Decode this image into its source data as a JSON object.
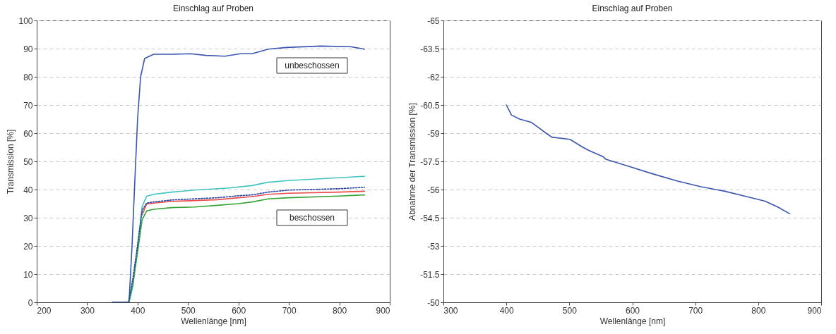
{
  "chart_data": [
    {
      "type": "line",
      "title": "Einschlag auf Proben",
      "xlabel": "Wellenlänge [nm]",
      "ylabel": "Transmission [%]",
      "xlim": [
        200,
        900
      ],
      "xticks": [
        200,
        300,
        400,
        500,
        600,
        700,
        800,
        900
      ],
      "ylim": [
        0,
        100
      ],
      "yticks": [
        0,
        10,
        20,
        30,
        40,
        50,
        60,
        70,
        80,
        90,
        100
      ],
      "grid": "y",
      "annotations": [
        "unbeschossen",
        "beschossen"
      ],
      "series": [
        {
          "color": "#3a56b0",
          "x": [
            350,
            383,
            389,
            395,
            400,
            406,
            414,
            432,
            468,
            505,
            536,
            573,
            604,
            627,
            659,
            695,
            763,
            822,
            850
          ],
          "values": [
            0,
            0,
            20,
            45,
            65,
            80,
            86.5,
            88,
            88,
            88.2,
            87.6,
            87.3,
            88.2,
            88.2,
            89.8,
            90.4,
            90.9,
            90.7,
            89.8
          ]
        },
        {
          "color": "#3ec3c3",
          "x": [
            383,
            391,
            400,
            409,
            418,
            432,
            468,
            513,
            577,
            627,
            659,
            699,
            799,
            850
          ],
          "values": [
            0,
            6,
            20,
            34,
            37.6,
            38.3,
            39.1,
            39.8,
            40.5,
            41.4,
            42.6,
            43.2,
            44.2,
            44.7
          ]
        },
        {
          "color": "#ea4b4b",
          "x": [
            409,
            418,
            432,
            468,
            513,
            559,
            600,
            627,
            659,
            699,
            799,
            850
          ],
          "values": [
            31,
            34.9,
            35.2,
            35.8,
            36.1,
            36.4,
            37.1,
            37.5,
            38.3,
            38.7,
            39.1,
            39.4
          ]
        },
        {
          "color": "#35a335",
          "x": [
            383,
            391,
            400,
            409,
            418,
            432,
            468,
            513,
            559,
            600,
            627,
            659,
            699,
            799,
            850
          ],
          "values": [
            0,
            7,
            17.8,
            29.3,
            32.4,
            33.0,
            33.6,
            33.8,
            34.4,
            35.0,
            35.6,
            36.7,
            37.1,
            37.7,
            38.1
          ]
        },
        {
          "color": "#2340a0",
          "line_style": "dotted",
          "x": [
            350,
            382,
            391,
            400,
            409,
            418,
            432,
            468,
            513,
            559,
            600,
            627,
            659,
            699,
            799,
            850
          ],
          "values": [
            0,
            0,
            8.8,
            20.3,
            32.6,
            35.2,
            35.6,
            36.3,
            36.7,
            37.1,
            37.8,
            38.1,
            39.1,
            39.8,
            40.3,
            40.8
          ]
        }
      ]
    },
    {
      "type": "line",
      "title": "Einschlag auf Proben",
      "xlabel": "Wellenlänge [nm]",
      "ylabel": "Abnahme der Transmission [%]",
      "xlim": [
        300,
        900
      ],
      "xticks": [
        300,
        400,
        500,
        600,
        700,
        800,
        900
      ],
      "ylim": [
        -50,
        -65
      ],
      "yticks": [
        -65,
        -63.5,
        -62,
        -60.5,
        -59,
        -57.5,
        -56,
        -54.5,
        -53,
        -51.5,
        -50
      ],
      "grid": "y",
      "series": [
        {
          "color": "#3a56b0",
          "x": [
            400,
            408,
            421,
            440,
            463,
            472,
            501,
            520,
            531,
            554,
            558,
            596,
            633,
            672,
            709,
            747,
            785,
            811,
            831,
            850
          ],
          "values": [
            -60.5,
            -59.97,
            -59.75,
            -59.57,
            -59.0,
            -58.79,
            -58.67,
            -58.28,
            -58.08,
            -57.74,
            -57.61,
            -57.22,
            -56.83,
            -56.45,
            -56.15,
            -55.91,
            -55.6,
            -55.38,
            -55.07,
            -54.71
          ]
        }
      ]
    }
  ]
}
